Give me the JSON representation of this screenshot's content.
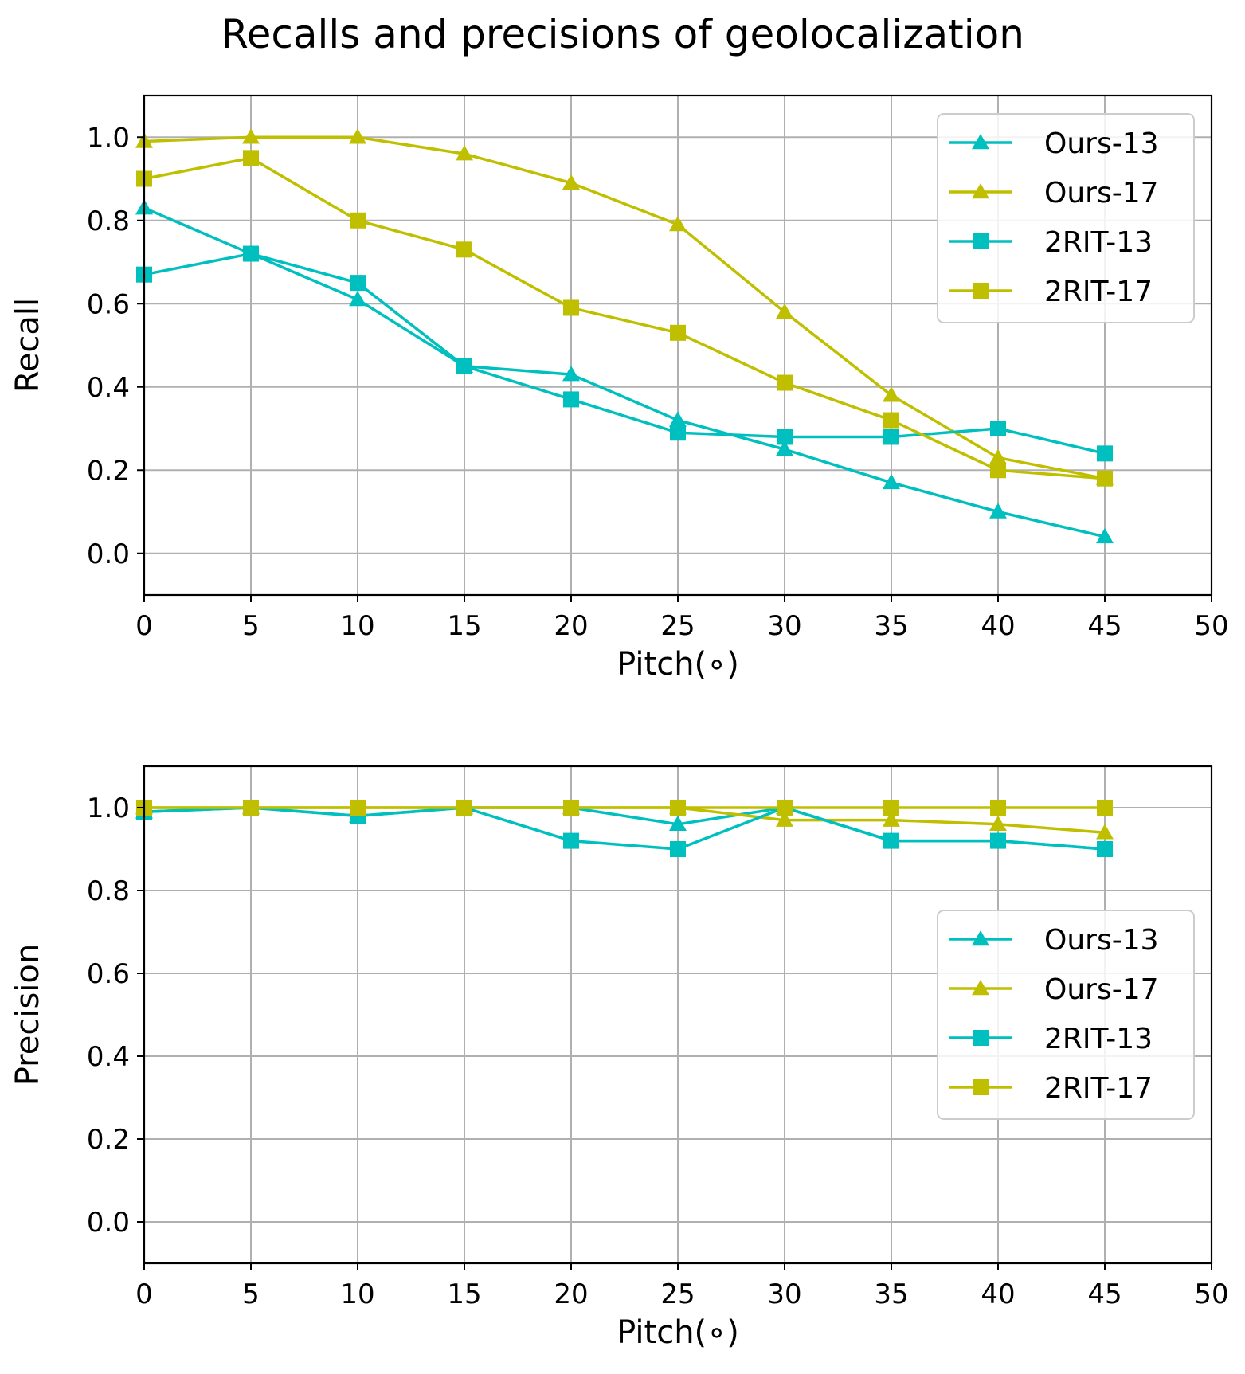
{
  "title": "Recalls and precisions of geolocalization",
  "colors": {
    "cyan": "#00bfbf",
    "olive": "#bfbf00",
    "grid": "#b0b0b0"
  },
  "chart_data": [
    {
      "type": "line",
      "title": "",
      "xlabel": "Pitch(∘)",
      "ylabel": "Recall",
      "xlim": [
        0,
        50
      ],
      "ylim": [
        -0.1,
        1.1
      ],
      "xticks": [
        0,
        5,
        10,
        15,
        20,
        25,
        30,
        35,
        40,
        45,
        50
      ],
      "yticks": [
        0.0,
        0.2,
        0.4,
        0.6,
        0.8,
        1.0
      ],
      "grid": true,
      "legend_position": "top-right",
      "x": [
        0,
        5,
        10,
        15,
        20,
        25,
        30,
        35,
        40,
        45
      ],
      "series": [
        {
          "name": "Ours-13",
          "color": "#00bfbf",
          "marker": "triangle",
          "values": [
            0.83,
            0.72,
            0.61,
            0.45,
            0.43,
            0.32,
            0.25,
            0.17,
            0.1,
            0.04
          ]
        },
        {
          "name": "Ours-17",
          "color": "#bfbf00",
          "marker": "triangle",
          "values": [
            0.99,
            1.0,
            1.0,
            0.96,
            0.89,
            0.79,
            0.58,
            0.38,
            0.23,
            0.18
          ]
        },
        {
          "name": "2RIT-13",
          "color": "#00bfbf",
          "marker": "square",
          "values": [
            0.67,
            0.72,
            0.65,
            0.45,
            0.37,
            0.29,
            0.28,
            0.28,
            0.3,
            0.24
          ]
        },
        {
          "name": "2RIT-17",
          "color": "#bfbf00",
          "marker": "square",
          "values": [
            0.9,
            0.95,
            0.8,
            0.73,
            0.59,
            0.53,
            0.41,
            0.32,
            0.2,
            0.18
          ]
        }
      ]
    },
    {
      "type": "line",
      "title": "",
      "xlabel": "Pitch(∘)",
      "ylabel": "Precision",
      "xlim": [
        0,
        50
      ],
      "ylim": [
        -0.1,
        1.1
      ],
      "xticks": [
        0,
        5,
        10,
        15,
        20,
        25,
        30,
        35,
        40,
        45,
        50
      ],
      "yticks": [
        0.0,
        0.2,
        0.4,
        0.6,
        0.8,
        1.0
      ],
      "grid": true,
      "legend_position": "center-right",
      "x": [
        0,
        5,
        10,
        15,
        20,
        25,
        30,
        35,
        40,
        45
      ],
      "series": [
        {
          "name": "Ours-13",
          "color": "#00bfbf",
          "marker": "triangle",
          "values": [
            0.99,
            1.0,
            0.98,
            1.0,
            1.0,
            0.96,
            1.0,
            0.92,
            0.92,
            0.9
          ]
        },
        {
          "name": "Ours-17",
          "color": "#bfbf00",
          "marker": "triangle",
          "values": [
            1.0,
            1.0,
            1.0,
            1.0,
            1.0,
            1.0,
            0.97,
            0.97,
            0.96,
            0.94
          ]
        },
        {
          "name": "2RIT-13",
          "color": "#00bfbf",
          "marker": "square",
          "values": [
            0.99,
            1.0,
            0.98,
            1.0,
            0.92,
            0.9,
            1.0,
            0.92,
            0.92,
            0.9
          ]
        },
        {
          "name": "2RIT-17",
          "color": "#bfbf00",
          "marker": "square",
          "values": [
            1.0,
            1.0,
            1.0,
            1.0,
            1.0,
            1.0,
            1.0,
            1.0,
            1.0,
            1.0
          ]
        }
      ]
    }
  ]
}
